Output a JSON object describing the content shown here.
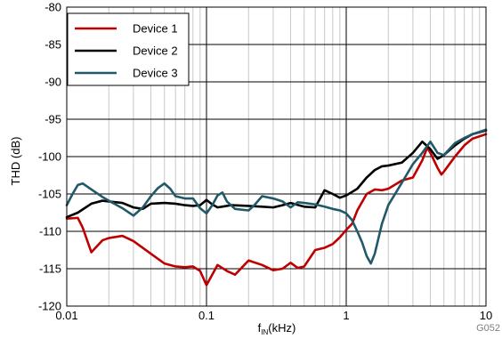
{
  "chart_data": {
    "type": "line",
    "title": "",
    "xlabel_main": "f",
    "xlabel_sub": "IN",
    "xlabel_unit": "(kHz)",
    "ylabel": "THD (dB)",
    "x_scale": "log",
    "xlim": [
      0.01,
      10
    ],
    "ylim": [
      -120,
      -80
    ],
    "x_ticks": [
      0.01,
      0.1,
      1,
      10
    ],
    "x_tick_labels": [
      "0.01",
      "0.1",
      "1",
      "10"
    ],
    "y_ticks": [
      -120,
      -115,
      -110,
      -105,
      -100,
      -95,
      -90,
      -85,
      -80
    ],
    "y_tick_labels": [
      "-120",
      "-115",
      "-110",
      "-105",
      "-100",
      "-95",
      "-90",
      "-85",
      "-80"
    ],
    "grid": true,
    "legend_position": "top-left",
    "figure_id": "G052",
    "series": [
      {
        "name": "Device 1",
        "color": "#c00000",
        "points": [
          [
            0.01,
            -108.3
          ],
          [
            0.012,
            -108.2
          ],
          [
            0.013,
            -109.5
          ],
          [
            0.015,
            -112.8
          ],
          [
            0.018,
            -111.2
          ],
          [
            0.02,
            -110.9
          ],
          [
            0.025,
            -110.6
          ],
          [
            0.03,
            -111.3
          ],
          [
            0.04,
            -113.0
          ],
          [
            0.05,
            -114.3
          ],
          [
            0.06,
            -114.7
          ],
          [
            0.07,
            -114.8
          ],
          [
            0.08,
            -114.7
          ],
          [
            0.09,
            -115.3
          ],
          [
            0.1,
            -117.2
          ],
          [
            0.12,
            -114.5
          ],
          [
            0.14,
            -115.3
          ],
          [
            0.16,
            -115.8
          ],
          [
            0.18,
            -114.8
          ],
          [
            0.2,
            -113.9
          ],
          [
            0.25,
            -114.5
          ],
          [
            0.3,
            -115.2
          ],
          [
            0.35,
            -115.0
          ],
          [
            0.4,
            -114.2
          ],
          [
            0.45,
            -114.9
          ],
          [
            0.5,
            -114.7
          ],
          [
            0.6,
            -112.5
          ],
          [
            0.7,
            -112.2
          ],
          [
            0.8,
            -111.7
          ],
          [
            0.9,
            -110.8
          ],
          [
            1.0,
            -109.8
          ],
          [
            1.1,
            -109.0
          ],
          [
            1.2,
            -107.2
          ],
          [
            1.4,
            -105.0
          ],
          [
            1.6,
            -104.4
          ],
          [
            1.8,
            -104.5
          ],
          [
            2.0,
            -104.3
          ],
          [
            2.5,
            -103.2
          ],
          [
            3.0,
            -102.8
          ],
          [
            3.5,
            -100.5
          ],
          [
            3.8,
            -98.8
          ],
          [
            4.0,
            -99.5
          ],
          [
            4.5,
            -101.5
          ],
          [
            4.8,
            -102.4
          ],
          [
            5.0,
            -102.0
          ],
          [
            6.0,
            -100.0
          ],
          [
            7.0,
            -98.5
          ],
          [
            8.0,
            -97.6
          ],
          [
            10.0,
            -97.0
          ]
        ]
      },
      {
        "name": "Device 2",
        "color": "#000000",
        "points": [
          [
            0.01,
            -108.1
          ],
          [
            0.012,
            -107.5
          ],
          [
            0.015,
            -106.3
          ],
          [
            0.018,
            -105.9
          ],
          [
            0.02,
            -106.0
          ],
          [
            0.025,
            -106.2
          ],
          [
            0.03,
            -106.8
          ],
          [
            0.035,
            -107.0
          ],
          [
            0.04,
            -106.3
          ],
          [
            0.05,
            -106.2
          ],
          [
            0.06,
            -106.3
          ],
          [
            0.07,
            -106.5
          ],
          [
            0.08,
            -106.6
          ],
          [
            0.09,
            -106.5
          ],
          [
            0.1,
            -105.8
          ],
          [
            0.11,
            -106.4
          ],
          [
            0.12,
            -106.8
          ],
          [
            0.15,
            -106.5
          ],
          [
            0.2,
            -106.6
          ],
          [
            0.25,
            -106.7
          ],
          [
            0.3,
            -106.8
          ],
          [
            0.35,
            -106.5
          ],
          [
            0.4,
            -106.2
          ],
          [
            0.5,
            -106.7
          ],
          [
            0.6,
            -106.8
          ],
          [
            0.7,
            -104.5
          ],
          [
            0.8,
            -105.0
          ],
          [
            0.9,
            -105.5
          ],
          [
            1.0,
            -105.2
          ],
          [
            1.2,
            -104.3
          ],
          [
            1.4,
            -102.8
          ],
          [
            1.6,
            -101.8
          ],
          [
            1.8,
            -101.3
          ],
          [
            2.0,
            -101.2
          ],
          [
            2.5,
            -100.8
          ],
          [
            3.0,
            -99.5
          ],
          [
            3.5,
            -98.0
          ],
          [
            4.0,
            -99.0
          ],
          [
            4.5,
            -100.3
          ],
          [
            5.0,
            -99.8
          ],
          [
            6.0,
            -98.5
          ],
          [
            7.0,
            -97.6
          ],
          [
            8.0,
            -97.0
          ],
          [
            10.0,
            -96.5
          ]
        ]
      },
      {
        "name": "Device 3",
        "color": "#215968",
        "points": [
          [
            0.01,
            -106.5
          ],
          [
            0.011,
            -105.0
          ],
          [
            0.012,
            -103.8
          ],
          [
            0.013,
            -103.6
          ],
          [
            0.015,
            -104.4
          ],
          [
            0.018,
            -105.4
          ],
          [
            0.02,
            -105.9
          ],
          [
            0.025,
            -106.9
          ],
          [
            0.03,
            -107.9
          ],
          [
            0.035,
            -106.8
          ],
          [
            0.04,
            -105.3
          ],
          [
            0.045,
            -104.2
          ],
          [
            0.05,
            -103.6
          ],
          [
            0.055,
            -104.3
          ],
          [
            0.06,
            -105.3
          ],
          [
            0.07,
            -105.6
          ],
          [
            0.08,
            -105.6
          ],
          [
            0.09,
            -106.9
          ],
          [
            0.1,
            -107.6
          ],
          [
            0.11,
            -106.5
          ],
          [
            0.12,
            -105.2
          ],
          [
            0.13,
            -104.8
          ],
          [
            0.14,
            -106.0
          ],
          [
            0.16,
            -107.0
          ],
          [
            0.2,
            -107.2
          ],
          [
            0.22,
            -106.5
          ],
          [
            0.25,
            -105.3
          ],
          [
            0.3,
            -105.6
          ],
          [
            0.35,
            -106.0
          ],
          [
            0.4,
            -106.8
          ],
          [
            0.45,
            -106.1
          ],
          [
            0.5,
            -106.2
          ],
          [
            0.6,
            -106.4
          ],
          [
            0.7,
            -106.7
          ],
          [
            0.8,
            -107.0
          ],
          [
            0.9,
            -107.2
          ],
          [
            1.0,
            -107.6
          ],
          [
            1.1,
            -108.5
          ],
          [
            1.2,
            -110.0
          ],
          [
            1.3,
            -111.5
          ],
          [
            1.4,
            -113.3
          ],
          [
            1.5,
            -114.3
          ],
          [
            1.6,
            -113.0
          ],
          [
            1.8,
            -109.0
          ],
          [
            2.0,
            -106.5
          ],
          [
            2.5,
            -103.5
          ],
          [
            3.0,
            -101.0
          ],
          [
            3.5,
            -99.5
          ],
          [
            4.0,
            -98.0
          ],
          [
            4.5,
            -99.5
          ],
          [
            5.0,
            -99.8
          ],
          [
            6.0,
            -98.2
          ],
          [
            7.0,
            -97.5
          ],
          [
            8.0,
            -97.0
          ],
          [
            10.0,
            -96.4
          ]
        ]
      }
    ]
  }
}
